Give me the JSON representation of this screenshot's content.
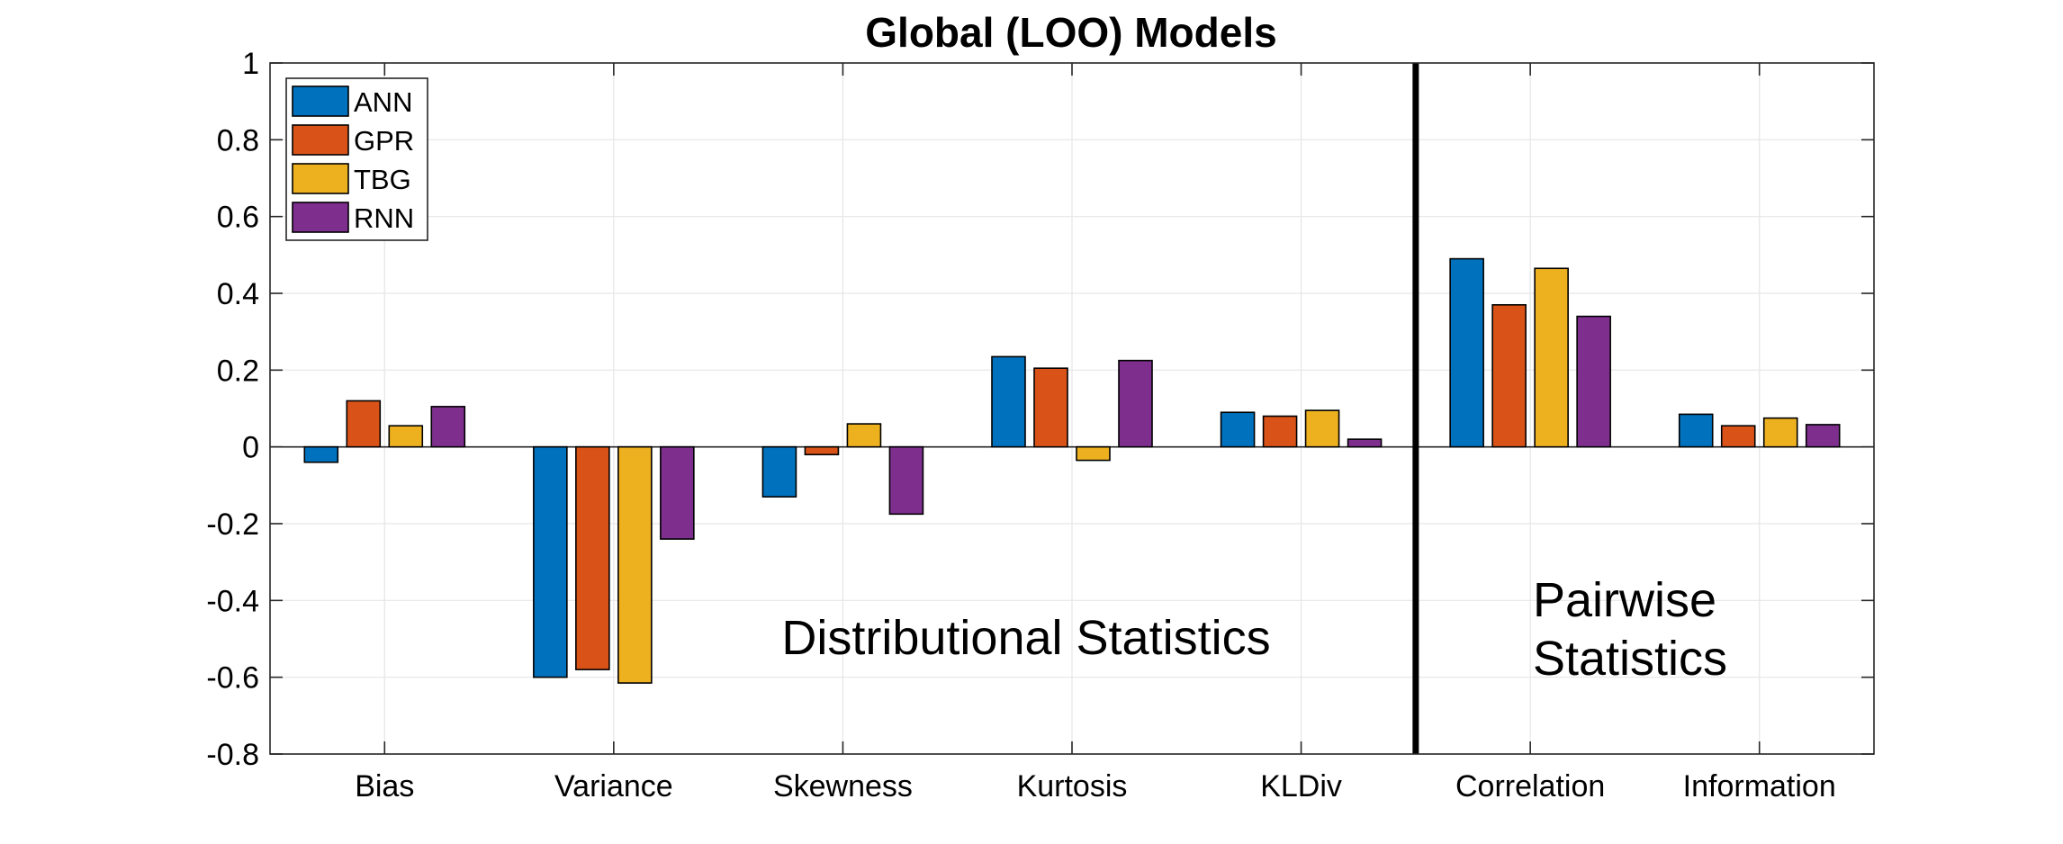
{
  "chart_data": {
    "type": "bar",
    "title": "Global (LOO) Models",
    "xlabel": "",
    "ylabel": "",
    "ylim": [
      -0.8,
      1
    ],
    "yticks": [
      -0.8,
      -0.6,
      -0.4,
      -0.2,
      0,
      0.2,
      0.4,
      0.6,
      0.8,
      1
    ],
    "ytick_labels": [
      "-0.8",
      "-0.6",
      "-0.4",
      "-0.2",
      "0",
      "0.2",
      "0.4",
      "0.6",
      "0.8",
      "1"
    ],
    "grid": true,
    "legend_position": "top-left",
    "categories": [
      "Bias",
      "Variance",
      "Skewness",
      "Kurtosis",
      "KLDiv",
      "Correlation",
      "Information"
    ],
    "series": [
      {
        "name": "ANN",
        "color": "#0072BD",
        "values": [
          -0.04,
          -0.6,
          -0.13,
          0.235,
          0.09,
          0.49,
          0.085
        ]
      },
      {
        "name": "GPR",
        "color": "#D95319",
        "values": [
          0.12,
          -0.58,
          -0.02,
          0.205,
          0.08,
          0.37,
          0.055
        ]
      },
      {
        "name": "TBG",
        "color": "#EDB120",
        "values": [
          0.055,
          -0.615,
          0.06,
          -0.035,
          0.095,
          0.465,
          0.075
        ]
      },
      {
        "name": "RNN",
        "color": "#7E2F8E",
        "values": [
          0.105,
          -0.24,
          -0.175,
          0.225,
          0.02,
          0.34,
          0.058
        ]
      }
    ],
    "annotations": [
      {
        "text": "Distributional Statistics"
      },
      {
        "text": "Pairwise"
      },
      {
        "text": "Statistics"
      }
    ]
  }
}
